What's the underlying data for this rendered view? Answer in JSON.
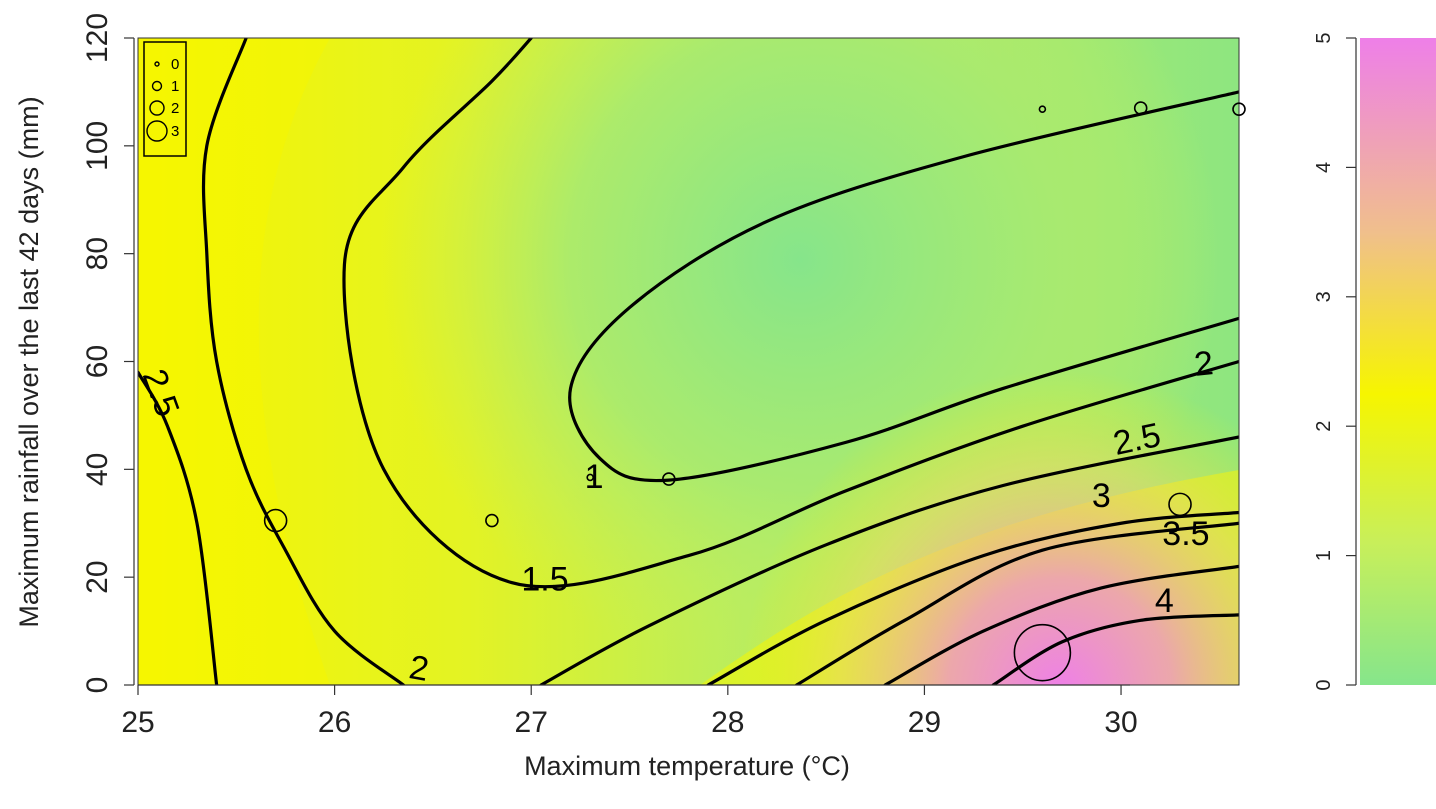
{
  "chart_data": {
    "type": "heatmap",
    "subtype": "filled-contour-with-bubbles",
    "xlabel": "Maximum temperature (°C)",
    "ylabel": "Maximum rainfall over the last 42 days (mm)",
    "xlim": [
      25,
      30.6
    ],
    "ylim": [
      0,
      120
    ],
    "x_ticks": [
      "25",
      "26",
      "27",
      "28",
      "29",
      "30"
    ],
    "y_ticks": [
      "0",
      "20",
      "40",
      "60",
      "80",
      "100",
      "120"
    ],
    "colorscale": {
      "range": [
        0,
        5
      ],
      "ticks": [
        "0",
        "1",
        "2",
        "3",
        "4",
        "5"
      ],
      "colors": [
        "#86e58b",
        "#c8ef5a",
        "#f6f500",
        "#f0bf8c",
        "#ee7fe8"
      ]
    },
    "contours": [
      {
        "label": "1",
        "value": 1,
        "points": [
          [
            30.6,
            110
          ],
          [
            29.2,
            98
          ],
          [
            28.2,
            86
          ],
          [
            27.5,
            70
          ],
          [
            27.2,
            55
          ],
          [
            27.35,
            42
          ],
          [
            27.7,
            38
          ],
          [
            28.6,
            45
          ],
          [
            29.4,
            55
          ],
          [
            30.6,
            68
          ]
        ]
      },
      {
        "label": "1.5",
        "value": 1.5,
        "points": [
          [
            27.0,
            120
          ],
          [
            26.8,
            112
          ],
          [
            26.35,
            96
          ],
          [
            26.05,
            78
          ],
          [
            26.25,
            40
          ],
          [
            26.9,
            19
          ],
          [
            27.8,
            24
          ],
          [
            28.6,
            36
          ],
          [
            29.5,
            48
          ],
          [
            30.6,
            60
          ]
        ]
      },
      {
        "label": "2",
        "value": 2,
        "points": [
          [
            25.55,
            120
          ],
          [
            25.35,
            100
          ],
          [
            25.35,
            80
          ],
          [
            25.4,
            60
          ],
          [
            25.55,
            40
          ],
          [
            25.75,
            25
          ],
          [
            26.0,
            10
          ],
          [
            26.35,
            0
          ]
        ]
      },
      {
        "label": "2.5",
        "value": 2.5,
        "points": [
          [
            25.0,
            58
          ],
          [
            25.15,
            48
          ],
          [
            25.3,
            30
          ],
          [
            25.4,
            0
          ]
        ]
      },
      {
        "label": "",
        "value": 2,
        "points": [
          [
            27.9,
            0
          ],
          [
            28.5,
            12
          ],
          [
            29.3,
            24
          ],
          [
            30.0,
            30
          ],
          [
            30.6,
            32
          ]
        ]
      },
      {
        "label": "",
        "value": 2.5,
        "points": [
          [
            27.05,
            0
          ],
          [
            27.6,
            11
          ],
          [
            28.5,
            26
          ],
          [
            29.4,
            37
          ],
          [
            30.6,
            46
          ]
        ]
      },
      {
        "label": "",
        "value": 3,
        "points": [
          [
            28.35,
            0
          ],
          [
            28.9,
            12
          ],
          [
            29.6,
            25
          ],
          [
            30.6,
            30
          ]
        ]
      },
      {
        "label": "",
        "value": 3.5,
        "points": [
          [
            28.8,
            0
          ],
          [
            29.3,
            10
          ],
          [
            29.9,
            18
          ],
          [
            30.6,
            22
          ]
        ]
      },
      {
        "label": "",
        "value": 4,
        "points": [
          [
            29.35,
            0
          ],
          [
            29.7,
            8
          ],
          [
            30.1,
            12
          ],
          [
            30.6,
            13
          ]
        ]
      }
    ],
    "bubbles": [
      {
        "x": 25.7,
        "y": 30.5,
        "size": 2
      },
      {
        "x": 26.8,
        "y": 30.5,
        "size": 1
      },
      {
        "x": 27.3,
        "y": 38.5,
        "size": 0
      },
      {
        "x": 27.7,
        "y": 38.2,
        "size": 1
      },
      {
        "x": 29.6,
        "y": 6,
        "size": 3
      },
      {
        "x": 30.3,
        "y": 33.5,
        "size": 2
      },
      {
        "x": 29.6,
        "y": 106.8,
        "size": 0
      },
      {
        "x": 30.1,
        "y": 107,
        "size": 1
      },
      {
        "x": 30.6,
        "y": 106.8,
        "size": 1
      }
    ],
    "size_legend": {
      "position": "top-left",
      "entries": [
        "0",
        "1",
        "2",
        "3"
      ]
    },
    "grid": false
  }
}
